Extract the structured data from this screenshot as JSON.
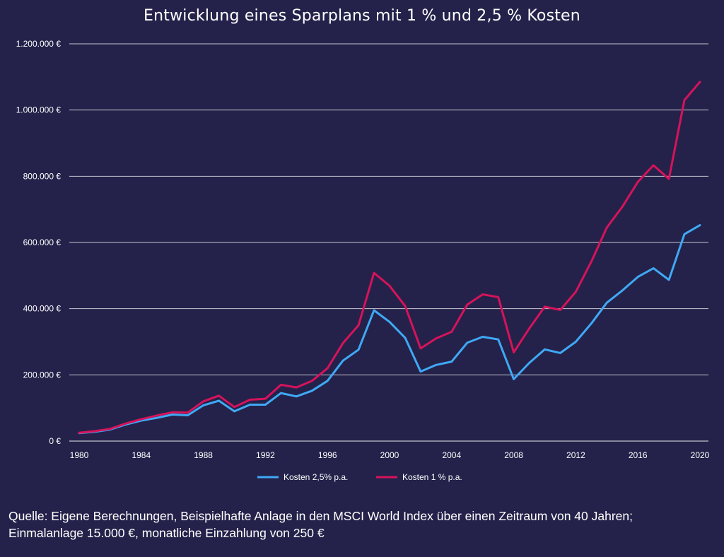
{
  "chart_data": {
    "type": "line",
    "title": "Entwicklung eines Sparplans mit 1 % und 2,5 % Kosten",
    "xlabel": "",
    "ylabel": "",
    "xlim": [
      1980,
      2020
    ],
    "ylim": [
      0,
      1200000
    ],
    "x_ticks": [
      1980,
      1984,
      1988,
      1992,
      1996,
      2000,
      2004,
      2008,
      2012,
      2016,
      2020
    ],
    "y_ticks": [
      0,
      200000,
      400000,
      600000,
      800000,
      1000000,
      1200000
    ],
    "y_tick_labels": [
      "0 €",
      "200.000 €",
      "400.000 €",
      "600.000 €",
      "800.000 €",
      "1.000.000 €",
      "1.200.000 €"
    ],
    "grid": "horizontal",
    "legend_position": "bottom",
    "x": [
      1980,
      1981,
      1982,
      1983,
      1984,
      1985,
      1986,
      1987,
      1988,
      1989,
      1990,
      1991,
      1992,
      1993,
      1994,
      1995,
      1996,
      1997,
      1998,
      1999,
      2000,
      2001,
      2002,
      2003,
      2004,
      2005,
      2006,
      2007,
      2008,
      2009,
      2010,
      2011,
      2012,
      2013,
      2014,
      2015,
      2016,
      2017,
      2018,
      2019,
      2020
    ],
    "series": [
      {
        "name": "Kosten 2,5% p.a.",
        "color": "#3fa9f5",
        "values": [
          24000,
          28000,
          35000,
          50000,
          62000,
          70000,
          80000,
          78000,
          108000,
          122000,
          90000,
          110000,
          110000,
          145000,
          135000,
          152000,
          182000,
          243000,
          276000,
          395000,
          360000,
          312000,
          210000,
          230000,
          240000,
          297000,
          315000,
          307000,
          187000,
          236000,
          277000,
          266000,
          300000,
          355000,
          418000,
          455000,
          496000,
          522000,
          487000,
          625000,
          652000
        ]
      },
      {
        "name": "Kosten 1 % p.a.",
        "color": "#d6135b",
        "values": [
          25000,
          30000,
          37000,
          53000,
          66000,
          77000,
          87000,
          86000,
          120000,
          137000,
          103000,
          125000,
          128000,
          170000,
          162000,
          182000,
          220000,
          296000,
          350000,
          508000,
          469000,
          408000,
          280000,
          310000,
          330000,
          412000,
          443000,
          435000,
          268000,
          340000,
          406000,
          396000,
          451000,
          542000,
          645000,
          708000,
          783000,
          833000,
          792000,
          1030000,
          1085000
        ]
      }
    ]
  },
  "source_note": {
    "line1": "Quelle: Eigene Berechnungen, Beispielhafte Anlage in den MSCI World Index über einen Zeitraum von 40 Jahren;",
    "line2": "Einmalanlage 15.000 €, monatliche Einzahlung von 250 €"
  },
  "colors": {
    "background": "#24224a",
    "grid": "#ffffff",
    "text": "#ffffff"
  }
}
